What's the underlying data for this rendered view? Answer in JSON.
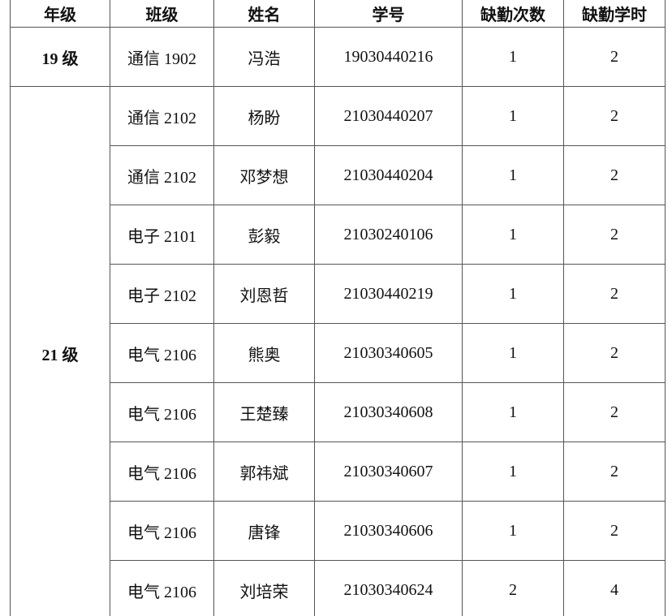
{
  "table": {
    "headers": [
      "年级",
      "班级",
      "姓名",
      "学号",
      "缺勤次数",
      "缺勤学时"
    ],
    "groups": [
      {
        "grade": "19 级",
        "rows": [
          {
            "class": "通信 1902",
            "name": "冯浩",
            "id": "19030440216",
            "absences": "1",
            "hours": "2"
          }
        ]
      },
      {
        "grade": "21 级",
        "rows": [
          {
            "class": "通信 2102",
            "name": "杨盼",
            "id": "21030440207",
            "absences": "1",
            "hours": "2"
          },
          {
            "class": "通信 2102",
            "name": "邓梦想",
            "id": "21030440204",
            "absences": "1",
            "hours": "2"
          },
          {
            "class": "电子 2101",
            "name": "彭毅",
            "id": "21030240106",
            "absences": "1",
            "hours": "2"
          },
          {
            "class": "电子 2102",
            "name": "刘恩哲",
            "id": "21030440219",
            "absences": "1",
            "hours": "2"
          },
          {
            "class": "电气 2106",
            "name": "熊奥",
            "id": "21030340605",
            "absences": "1",
            "hours": "2"
          },
          {
            "class": "电气 2106",
            "name": "王楚臻",
            "id": "21030340608",
            "absences": "1",
            "hours": "2"
          },
          {
            "class": "电气 2106",
            "name": "郭祎斌",
            "id": "21030340607",
            "absences": "1",
            "hours": "2"
          },
          {
            "class": "电气 2106",
            "name": "唐锋",
            "id": "21030340606",
            "absences": "1",
            "hours": "2"
          },
          {
            "class": "电气 2106",
            "name": "刘培荣",
            "id": "21030340624",
            "absences": "2",
            "hours": "4"
          }
        ]
      }
    ]
  }
}
